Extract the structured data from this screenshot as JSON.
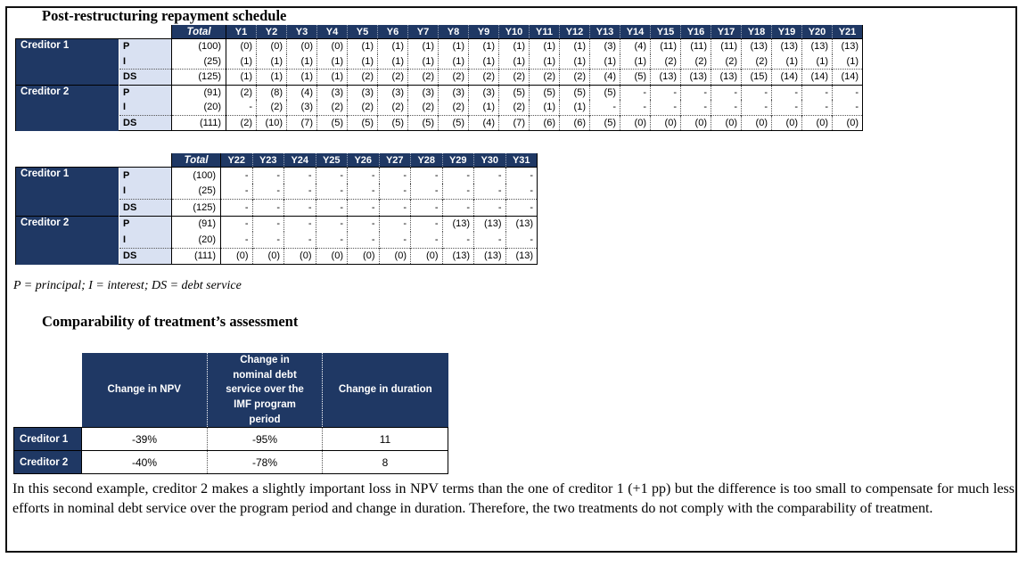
{
  "colors": {
    "header_navy": "#1F3864",
    "row_label_light": "#D9E1F2"
  },
  "schedule": {
    "title": "Post-restructuring repayment schedule"
  },
  "legend_note": "P = principal; I = interest; DS = debt service",
  "schedule_tables": [
    {
      "total_header": "Total",
      "year_headers": [
        "Y1",
        "Y2",
        "Y3",
        "Y4",
        "Y5",
        "Y6",
        "Y7",
        "Y8",
        "Y9",
        "Y10",
        "Y11",
        "Y12",
        "Y13",
        "Y14",
        "Y15",
        "Y16",
        "Y17",
        "Y18",
        "Y19",
        "Y20",
        "Y21"
      ],
      "groups": [
        {
          "label": "Creditor 1",
          "rows": [
            {
              "label": "P",
              "total": "(100)",
              "values": [
                "(0)",
                "(0)",
                "(0)",
                "(0)",
                "(1)",
                "(1)",
                "(1)",
                "(1)",
                "(1)",
                "(1)",
                "(1)",
                "(1)",
                "(3)",
                "(4)",
                "(11)",
                "(11)",
                "(11)",
                "(13)",
                "(13)",
                "(13)",
                "(13)"
              ]
            },
            {
              "label": "I",
              "total": "(25)",
              "values": [
                "(1)",
                "(1)",
                "(1)",
                "(1)",
                "(1)",
                "(1)",
                "(1)",
                "(1)",
                "(1)",
                "(1)",
                "(1)",
                "(1)",
                "(1)",
                "(1)",
                "(2)",
                "(2)",
                "(2)",
                "(2)",
                "(1)",
                "(1)",
                "(1)"
              ]
            },
            {
              "label": "DS",
              "total": "(125)",
              "values": [
                "(1)",
                "(1)",
                "(1)",
                "(1)",
                "(2)",
                "(2)",
                "(2)",
                "(2)",
                "(2)",
                "(2)",
                "(2)",
                "(2)",
                "(4)",
                "(5)",
                "(13)",
                "(13)",
                "(13)",
                "(15)",
                "(14)",
                "(14)",
                "(14)"
              ]
            }
          ]
        },
        {
          "label": "Creditor 2",
          "rows": [
            {
              "label": "P",
              "total": "(91)",
              "values": [
                "(2)",
                "(8)",
                "(4)",
                "(3)",
                "(3)",
                "(3)",
                "(3)",
                "(3)",
                "(3)",
                "(5)",
                "(5)",
                "(5)",
                "(5)",
                "-",
                "-",
                "-",
                "-",
                "-",
                "-",
                "-",
                "-"
              ]
            },
            {
              "label": "I",
              "total": "(20)",
              "values": [
                "-",
                "(2)",
                "(3)",
                "(2)",
                "(2)",
                "(2)",
                "(2)",
                "(2)",
                "(1)",
                "(2)",
                "(1)",
                "(1)",
                "-",
                "-",
                "-",
                "-",
                "-",
                "-",
                "-",
                "-",
                "-"
              ]
            },
            {
              "label": "DS",
              "total": "(111)",
              "values": [
                "(2)",
                "(10)",
                "(7)",
                "(5)",
                "(5)",
                "(5)",
                "(5)",
                "(5)",
                "(4)",
                "(7)",
                "(6)",
                "(6)",
                "(5)",
                "(0)",
                "(0)",
                "(0)",
                "(0)",
                "(0)",
                "(0)",
                "(0)",
                "(0)"
              ]
            }
          ]
        }
      ]
    },
    {
      "total_header": "Total",
      "year_headers": [
        "Y22",
        "Y23",
        "Y24",
        "Y25",
        "Y26",
        "Y27",
        "Y28",
        "Y29",
        "Y30",
        "Y31"
      ],
      "groups": [
        {
          "label": "Creditor 1",
          "rows": [
            {
              "label": "P",
              "total": "(100)",
              "values": [
                "-",
                "-",
                "-",
                "-",
                "-",
                "-",
                "-",
                "-",
                "-",
                "-"
              ]
            },
            {
              "label": "I",
              "total": "(25)",
              "values": [
                "-",
                "-",
                "-",
                "-",
                "-",
                "-",
                "-",
                "-",
                "-",
                "-"
              ]
            },
            {
              "label": "DS",
              "total": "(125)",
              "values": [
                "-",
                "-",
                "-",
                "-",
                "-",
                "-",
                "-",
                "-",
                "-",
                "-"
              ]
            }
          ]
        },
        {
          "label": "Creditor 2",
          "rows": [
            {
              "label": "P",
              "total": "(91)",
              "values": [
                "-",
                "-",
                "-",
                "-",
                "-",
                "-",
                "-",
                "(13)",
                "(13)",
                "(13)"
              ]
            },
            {
              "label": "I",
              "total": "(20)",
              "values": [
                "-",
                "-",
                "-",
                "-",
                "-",
                "-",
                "-",
                "-",
                "-",
                "-"
              ]
            },
            {
              "label": "DS",
              "total": "(111)",
              "values": [
                "(0)",
                "(0)",
                "(0)",
                "(0)",
                "(0)",
                "(0)",
                "(0)",
                "(13)",
                "(13)",
                "(13)"
              ]
            }
          ]
        }
      ]
    }
  ],
  "comparability": {
    "title": "Comparability of treatment’s assessment",
    "columns": [
      "Change in NPV",
      "Change in nominal debt service over the IMF program period",
      "Change in duration"
    ],
    "rows": [
      {
        "label": "Creditor 1",
        "values": [
          "-39%",
          "-95%",
          "11"
        ]
      },
      {
        "label": "Creditor 2",
        "values": [
          "-40%",
          "-78%",
          "8"
        ]
      }
    ]
  },
  "conclusion": "In this second example, creditor 2 makes a slightly important loss in NPV terms than the one of creditor 1 (+1 pp) but the difference is too small to compensate for much less efforts in nominal debt service over the program period and change in duration. Therefore, the two treatments do not comply with the comparability of treatment."
}
